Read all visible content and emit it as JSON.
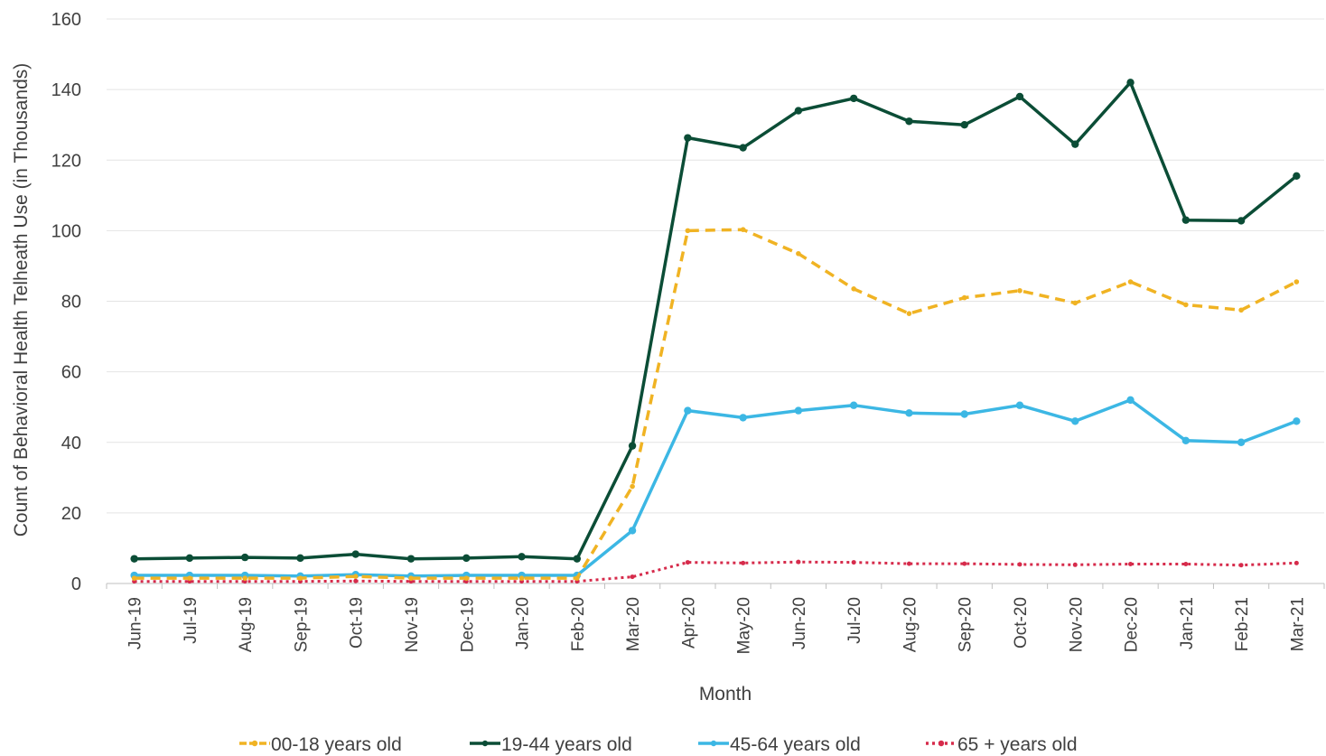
{
  "chart_data": {
    "type": "line",
    "title": "",
    "xlabel": "Month",
    "ylabel": "Count of  Behavioral Health Telheath Use (in Thousands)",
    "ylim": [
      0,
      160
    ],
    "yticks": [
      0,
      20,
      40,
      60,
      80,
      100,
      120,
      140,
      160
    ],
    "grid": "horizontal",
    "legend_position": "bottom",
    "categories": [
      "Jun-19",
      "Jul-19",
      "Aug-19",
      "Sep-19",
      "Oct-19",
      "Nov-19",
      "Dec-19",
      "Jan-20",
      "Feb-20",
      "Mar-20",
      "Apr-20",
      "May-20",
      "Jun-20",
      "Jul-20",
      "Aug-20",
      "Sep-20",
      "Oct-20",
      "Nov-20",
      "Dec-20",
      "Jan-21",
      "Feb-21",
      "Mar-21"
    ],
    "series": [
      {
        "name": "00-18 years old",
        "color": "#f0b323",
        "style": "dashed",
        "values": [
          1.5,
          1.5,
          1.5,
          1.5,
          2.0,
          1.5,
          1.5,
          1.5,
          1.5,
          27.5,
          100.0,
          100.3,
          93.5,
          83.5,
          76.5,
          81.0,
          83.0,
          79.5,
          85.5,
          79.0,
          77.5,
          85.5
        ]
      },
      {
        "name": "19-44 years old",
        "color": "#0b4d36",
        "style": "solid",
        "values": [
          7.0,
          7.2,
          7.4,
          7.2,
          8.3,
          7.0,
          7.2,
          7.6,
          7.0,
          39.0,
          126.3,
          123.5,
          134.0,
          137.5,
          131.0,
          130.0,
          138.0,
          124.5,
          142.0,
          103.0,
          102.8,
          115.5
        ]
      },
      {
        "name": "45-64 years old",
        "color": "#3cb7e4",
        "style": "solid",
        "values": [
          2.3,
          2.3,
          2.3,
          2.1,
          2.5,
          2.1,
          2.3,
          2.3,
          2.3,
          15.0,
          49.0,
          47.0,
          49.0,
          50.5,
          48.3,
          48.0,
          50.5,
          46.0,
          52.0,
          40.5,
          40.0,
          46.0
        ]
      },
      {
        "name": "65 + years old",
        "color": "#d62b4b",
        "style": "dotted",
        "values": [
          0.6,
          0.6,
          0.6,
          0.6,
          0.7,
          0.6,
          0.6,
          0.6,
          0.6,
          1.9,
          6.0,
          5.8,
          6.1,
          6.0,
          5.6,
          5.6,
          5.4,
          5.3,
          5.5,
          5.5,
          5.2,
          5.8
        ]
      }
    ]
  }
}
